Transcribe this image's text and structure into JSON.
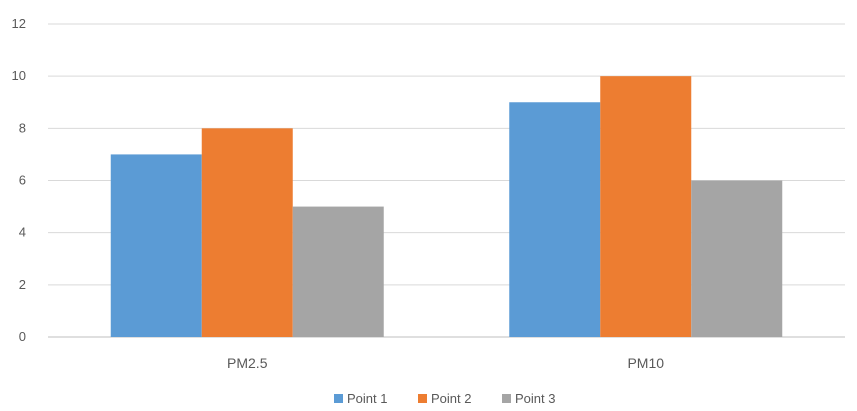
{
  "chart_data": {
    "type": "bar",
    "categories": [
      "PM2.5",
      "PM10"
    ],
    "series": [
      {
        "name": "Point 1",
        "values": [
          7,
          9
        ],
        "color": "#5B9BD5"
      },
      {
        "name": "Point 2",
        "values": [
          8,
          10
        ],
        "color": "#ED7D31"
      },
      {
        "name": "Point 3",
        "values": [
          5,
          6
        ],
        "color": "#A5A5A5"
      }
    ],
    "yticks": [
      "0",
      "2",
      "4",
      "6",
      "8",
      "10",
      "12"
    ],
    "ylim": [
      0,
      12
    ],
    "grid": true,
    "legend_position": "bottom",
    "title": "",
    "xlabel": "",
    "ylabel": ""
  }
}
